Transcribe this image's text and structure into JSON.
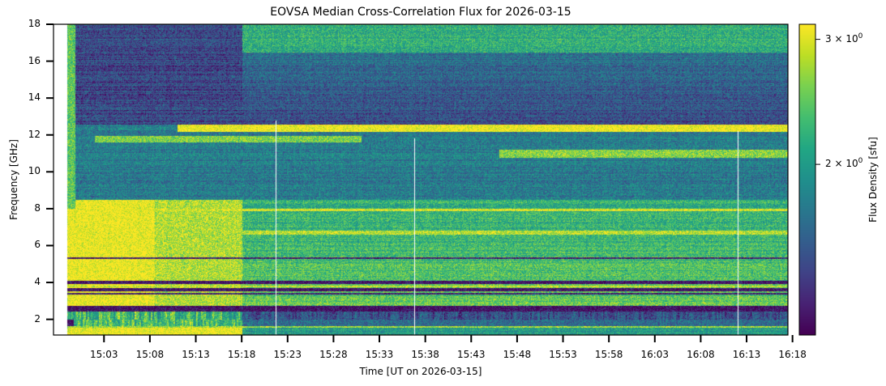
{
  "chart_data": {
    "type": "heatmap",
    "title": "EOVSA Median Cross-Correlation Flux for 2026-03-15",
    "xlabel": "Time [UT on 2026-03-15]",
    "ylabel": "Frequency [GHz]",
    "colorbar_label": "Flux Density [sfu]",
    "colormap": "viridis",
    "color_scale": "log",
    "colorbar_range": [
      1.15,
      3.15
    ],
    "colorbar_ticks": [
      {
        "value": 3,
        "label_base": "3 × 10",
        "label_exp": "0"
      },
      {
        "value": 2,
        "label_base": "2 × 10",
        "label_exp": "0"
      }
    ],
    "x_start": "14:59",
    "x_end": "16:18",
    "xlim_minutes_after_1459": [
      -1.5,
      78.5
    ],
    "x_ticks": [
      "15:03",
      "15:08",
      "15:13",
      "15:18",
      "15:23",
      "15:28",
      "15:33",
      "15:38",
      "15:43",
      "15:48",
      "15:53",
      "15:58",
      "16:03",
      "16:08",
      "16:13",
      "16:18"
    ],
    "x_tick_minutes_after_1459": [
      4,
      9,
      14,
      19,
      24,
      29,
      34,
      39,
      44,
      49,
      54,
      59,
      64,
      69,
      74,
      79
    ],
    "ylim": [
      1.15,
      18.0
    ],
    "y_ticks": [
      2,
      4,
      6,
      8,
      10,
      12,
      14,
      16,
      18
    ],
    "gaps_minutes_after_1459": [
      22.7,
      37.8,
      73.0
    ],
    "regimes": [
      {
        "from_min": 0,
        "to_min": 19,
        "note": "high-flux (saturated) below 8 GHz, dark above 12.5 GHz"
      },
      {
        "from_min": 19,
        "to_min": 79,
        "note": "moderate flux, bright persistent band at 12.2-12.6 GHz"
      }
    ],
    "bands_ghz": [
      {
        "from": 12.2,
        "to": 12.6,
        "level": "high",
        "note": "persistent bright band from 15:18"
      },
      {
        "from": 5.3,
        "to": 5.4,
        "level": "low"
      },
      {
        "from": 3.5,
        "to": 4.1,
        "level": "low",
        "note": "several dark striations"
      },
      {
        "from": 1.7,
        "to": 2.7,
        "level": "low",
        "note": "dark/blocked low-frequency band"
      },
      {
        "from": 7.9,
        "to": 8.0,
        "level": "high"
      },
      {
        "from": 6.6,
        "to": 6.8,
        "level": "high"
      }
    ]
  }
}
